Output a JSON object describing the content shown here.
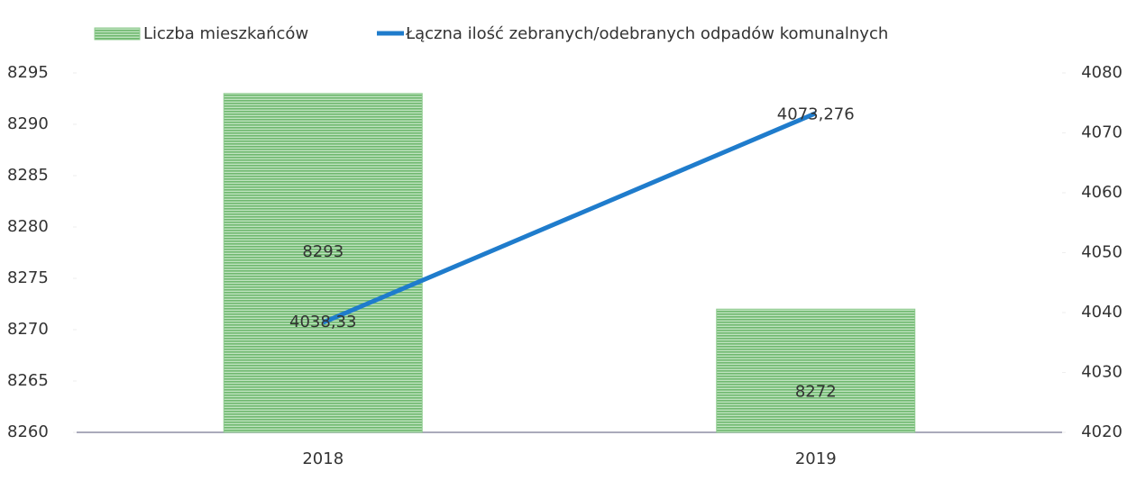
{
  "chart_data": {
    "type": "bar",
    "categories": [
      "2018",
      "2019"
    ],
    "series": [
      {
        "name": "Liczba mieszkańców",
        "color": "#8fcb8f",
        "type": "bar",
        "values": [
          8293,
          8272
        ]
      },
      {
        "name": "Łączna ilość zebranych/odebranych odpadów komunalnych",
        "color": "#1f7ccc",
        "type": "line",
        "axis": "y2",
        "values": [
          4038.33,
          4073.276
        ],
        "value_labels": [
          "4038,33",
          "4073,276"
        ]
      }
    ],
    "ylim": [
      8260,
      8295
    ],
    "yticks": [
      8260,
      8265,
      8270,
      8275,
      8280,
      8285,
      8290,
      8295
    ],
    "y2lim": [
      4020,
      4080
    ],
    "y2ticks": [
      4020,
      4030,
      4040,
      4050,
      4060,
      4070,
      4080
    ],
    "legend": "top"
  }
}
